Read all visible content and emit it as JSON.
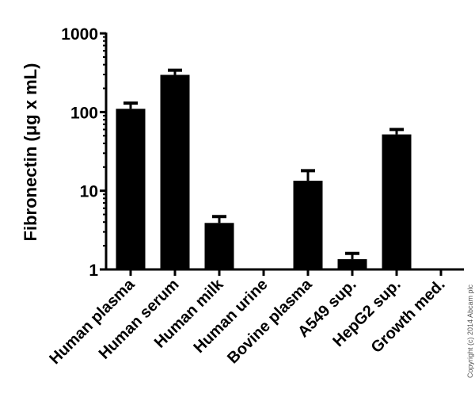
{
  "chart_data": {
    "type": "bar",
    "title": "",
    "xlabel": "",
    "ylabel": "Fibronectin (μg x mL)",
    "yscale": "log",
    "ylim": [
      1,
      1000
    ],
    "yticks": [
      1,
      10,
      100,
      1000
    ],
    "ytick_labels": [
      "1",
      "10",
      "100",
      "1000"
    ],
    "grid": false,
    "legend": null,
    "categories": [
      "Human plasma",
      "Human serum",
      "Human milk",
      "Human urine",
      "Bovine plasma",
      "A549 sup.",
      "HepG2 sup.",
      "Growth med."
    ],
    "values": [
      110,
      297,
      3.9,
      null,
      13.4,
      1.35,
      52,
      null
    ],
    "error_upper": [
      130,
      340,
      4.7,
      null,
      18,
      1.6,
      60,
      null
    ],
    "bar_color": "#000000"
  },
  "copyright": "Copyright (c) 2014 Abcam plc"
}
